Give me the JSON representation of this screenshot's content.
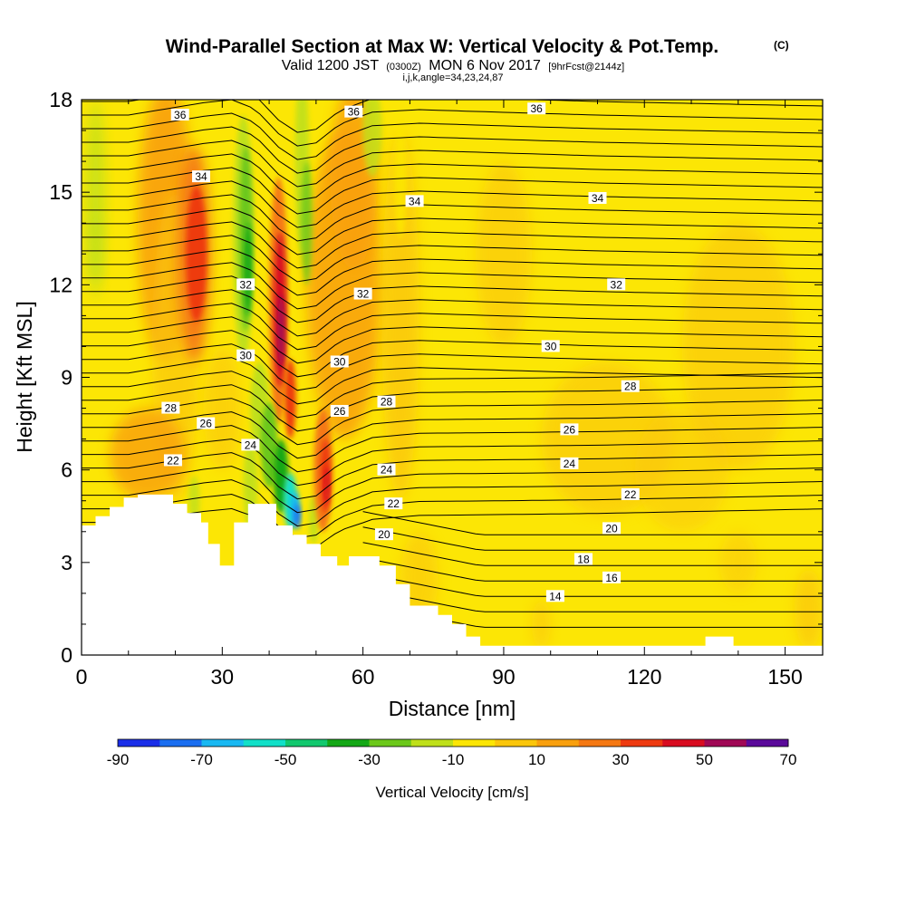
{
  "chart_data": {
    "type": "heatmap",
    "title": "Wind-Parallel Section at Max W: Vertical Velocity & Pot.Temp.",
    "title_mark": "(C)",
    "subtitle_parts": [
      "Valid 1200 JST",
      "(0300Z)",
      "MON 6 Nov 2017",
      "[9hrFcst@2144z]"
    ],
    "subtitle2": "i,j,k,angle=34,23,24,87",
    "xlabel": "Distance [nm]",
    "ylabel": "Height [Kft MSL]",
    "xlim": [
      0,
      158
    ],
    "ylim": [
      0,
      18
    ],
    "x_ticks": [
      0,
      30,
      60,
      90,
      120,
      150
    ],
    "y_ticks": [
      0,
      3,
      6,
      9,
      12,
      15,
      18
    ],
    "colorbar": {
      "label": "Vertical Velocity [cm/s]",
      "tick_values": [
        -90,
        -70,
        -50,
        -30,
        -10,
        10,
        30,
        50,
        70
      ],
      "bounds": [
        -90,
        70
      ],
      "colors": [
        "#1a2ee8",
        "#1b6ef0",
        "#19b8f2",
        "#12e0c8",
        "#12c86e",
        "#14a816",
        "#6cc81a",
        "#bfe01a",
        "#fce605",
        "#fbc60b",
        "#f9a00e",
        "#f57813",
        "#ee3a10",
        "#d80c20",
        "#a00855",
        "#5a0a9a"
      ]
    },
    "terrain_kft": [
      [
        0,
        4.2
      ],
      [
        3,
        4.2
      ],
      [
        3,
        4.5
      ],
      [
        6,
        4.5
      ],
      [
        6,
        4.8
      ],
      [
        9,
        4.8
      ],
      [
        9,
        5.1
      ],
      [
        12,
        5.1
      ],
      [
        12,
        5.2
      ],
      [
        19.5,
        5.2
      ],
      [
        19.5,
        4.9
      ],
      [
        22.5,
        4.9
      ],
      [
        22.5,
        4.6
      ],
      [
        25.5,
        4.6
      ],
      [
        25.5,
        4.3
      ],
      [
        27,
        4.3
      ],
      [
        27,
        3.6
      ],
      [
        29.5,
        3.6
      ],
      [
        29.5,
        2.9
      ],
      [
        32.5,
        2.9
      ],
      [
        32.5,
        4.3
      ],
      [
        35.5,
        4.3
      ],
      [
        35.5,
        4.9
      ],
      [
        41.5,
        4.9
      ],
      [
        41.5,
        4.2
      ],
      [
        45,
        4.2
      ],
      [
        45,
        3.9
      ],
      [
        48,
        3.9
      ],
      [
        48,
        3.6
      ],
      [
        51,
        3.6
      ],
      [
        51,
        3.2
      ],
      [
        54.5,
        3.2
      ],
      [
        54.5,
        2.9
      ],
      [
        57,
        2.9
      ],
      [
        57,
        3.2
      ],
      [
        63.5,
        3.2
      ],
      [
        63.5,
        2.9
      ],
      [
        67,
        2.9
      ],
      [
        67,
        2.3
      ],
      [
        70,
        2.3
      ],
      [
        70,
        1.6
      ],
      [
        76,
        1.6
      ],
      [
        76,
        1.3
      ],
      [
        79,
        1.3
      ],
      [
        79,
        1.0
      ],
      [
        82,
        1.0
      ],
      [
        82,
        0.6
      ],
      [
        85,
        0.6
      ],
      [
        85,
        0.3
      ],
      [
        133,
        0.3
      ],
      [
        133,
        0.6
      ],
      [
        139,
        0.6
      ],
      [
        139,
        0.3
      ],
      [
        158,
        0.3
      ]
    ],
    "potential_temperature_contours_C": [
      14,
      16,
      18,
      20,
      22,
      24,
      26,
      28,
      30,
      32,
      34,
      36
    ],
    "contour_labels": [
      {
        "value": "36",
        "x": 21,
        "y": 17.5
      },
      {
        "value": "36",
        "x": 58,
        "y": 17.6
      },
      {
        "value": "36",
        "x": 97,
        "y": 17.7
      },
      {
        "value": "34",
        "x": 25.5,
        "y": 15.5
      },
      {
        "value": "34",
        "x": 71,
        "y": 14.7
      },
      {
        "value": "34",
        "x": 110,
        "y": 14.8
      },
      {
        "value": "32",
        "x": 35,
        "y": 12.0
      },
      {
        "value": "32",
        "x": 60,
        "y": 11.7
      },
      {
        "value": "32",
        "x": 114,
        "y": 12.0
      },
      {
        "value": "30",
        "x": 35,
        "y": 9.7
      },
      {
        "value": "30",
        "x": 55,
        "y": 9.5
      },
      {
        "value": "30",
        "x": 100,
        "y": 10.0
      },
      {
        "value": "28",
        "x": 19,
        "y": 8.0
      },
      {
        "value": "28",
        "x": 65,
        "y": 8.2
      },
      {
        "value": "28",
        "x": 117,
        "y": 8.7
      },
      {
        "value": "26",
        "x": 26.5,
        "y": 7.5
      },
      {
        "value": "26",
        "x": 55,
        "y": 7.9
      },
      {
        "value": "26",
        "x": 104,
        "y": 7.3
      },
      {
        "value": "24",
        "x": 36,
        "y": 6.8
      },
      {
        "value": "24",
        "x": 65,
        "y": 6.0
      },
      {
        "value": "24",
        "x": 104,
        "y": 6.2
      },
      {
        "value": "22",
        "x": 19.5,
        "y": 6.3
      },
      {
        "value": "22",
        "x": 66.5,
        "y": 4.9
      },
      {
        "value": "22",
        "x": 117,
        "y": 5.2
      },
      {
        "value": "20",
        "x": 64.5,
        "y": 3.9
      },
      {
        "value": "20",
        "x": 113,
        "y": 4.1
      },
      {
        "value": "18",
        "x": 107,
        "y": 3.1
      },
      {
        "value": "16",
        "x": 113,
        "y": 2.5
      },
      {
        "value": "14",
        "x": 101,
        "y": 1.9
      }
    ],
    "velocity_features": [
      {
        "kind": "updraft",
        "x_center": 24,
        "y_center": 13,
        "peak_cm_s": 35
      },
      {
        "kind": "downdraft",
        "x_center": 35,
        "y_center": 13,
        "peak_cm_s": -35
      },
      {
        "kind": "updraft",
        "x_center": 42,
        "y_center": 11,
        "peak_cm_s": 55
      },
      {
        "kind": "downdraft",
        "x_center": 45,
        "y_center": 5.5,
        "peak_cm_s": -70
      },
      {
        "kind": "updraft",
        "x_center": 52,
        "y_center": 5.5,
        "peak_cm_s": 40
      }
    ]
  }
}
